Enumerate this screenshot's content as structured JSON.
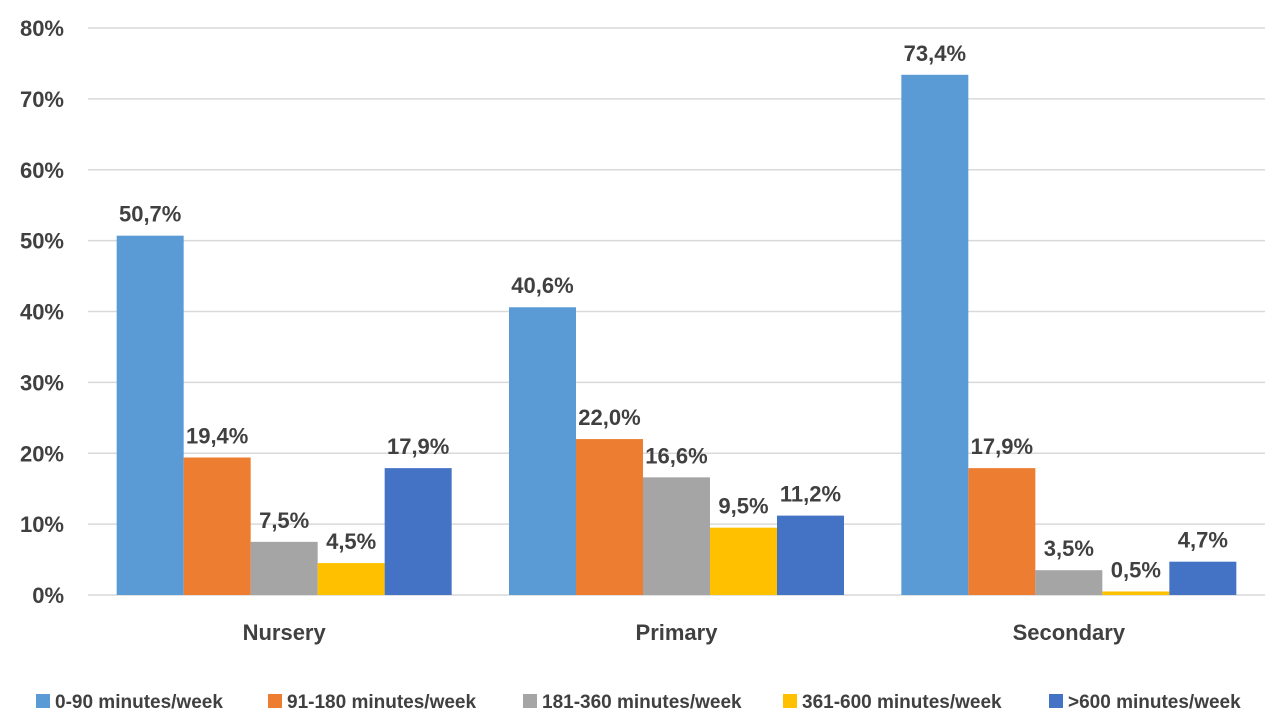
{
  "chart_data": {
    "type": "bar",
    "categories": [
      "Nursery",
      "Primary",
      "Secondary"
    ],
    "series": [
      {
        "name": "0-90 minutes/week",
        "color": "#5b9bd5",
        "values": [
          50.7,
          40.6,
          73.4
        ],
        "labels": [
          "50,7%",
          "40,6%",
          "73,4%"
        ]
      },
      {
        "name": "91-180 minutes/week",
        "color": "#ed7d31",
        "values": [
          19.4,
          22.0,
          17.9
        ],
        "labels": [
          "19,4%",
          "22,0%",
          "17,9%"
        ]
      },
      {
        "name": "181-360 minutes/week",
        "color": "#a5a5a5",
        "values": [
          7.5,
          16.6,
          3.5
        ],
        "labels": [
          "7,5%",
          "16,6%",
          "3,5%"
        ]
      },
      {
        "name": "361-600 minutes/week",
        "color": "#ffc000",
        "values": [
          4.5,
          9.5,
          0.5
        ],
        "labels": [
          "4,5%",
          "9,5%",
          "0,5%"
        ]
      },
      {
        "name": ">600 minutes/week",
        "color": "#4472c4",
        "values": [
          17.9,
          11.2,
          4.7
        ],
        "labels": [
          "17,9%",
          "11,2%",
          "4,7%"
        ]
      }
    ],
    "yticks": [
      0,
      10,
      20,
      30,
      40,
      50,
      60,
      70,
      80
    ],
    "ytick_labels": [
      "0%",
      "10%",
      "20%",
      "30%",
      "40%",
      "50%",
      "60%",
      "70%",
      "80%"
    ],
    "ylim": [
      0,
      80
    ],
    "grid": true,
    "legend": "bottom"
  }
}
